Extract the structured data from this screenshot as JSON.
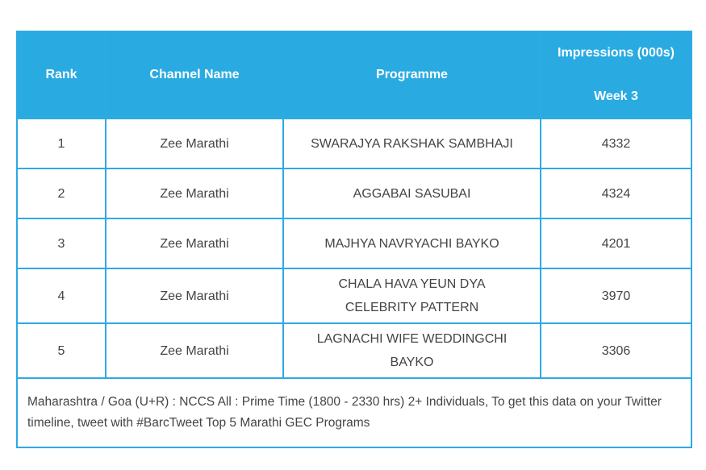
{
  "table": {
    "header": {
      "rank": "Rank",
      "channel": "Channel Name",
      "programme": "Programme",
      "impressions": "Impressions (000s)",
      "week": "Week 3"
    },
    "rows": [
      [
        1,
        "Zee Marathi",
        "SWARAJYA RAKSHAK SAMBHAJI",
        4332
      ],
      [
        2,
        "Zee Marathi",
        "AGGABAI SASUBAI",
        4324
      ],
      [
        3,
        "Zee Marathi",
        "MAJHYA NAVRYACHI BAYKO",
        4201
      ],
      [
        4,
        "Zee Marathi",
        "CHALA HAVA YEUN DYA CELEBRITY PATTERN",
        3970
      ],
      [
        5,
        "Zee Marathi",
        "LAGNACHI WIFE WEDDINGCHI BAYKO",
        3306
      ]
    ],
    "note": "Maharashtra / Goa (U+R) : NCCS All : Prime Time (1800 - 2330 hrs) 2+ Individuals, To get this data on your Twitter timeline, tweet with #BarcTweet Top 5 Marathi GEC Programs"
  }
}
